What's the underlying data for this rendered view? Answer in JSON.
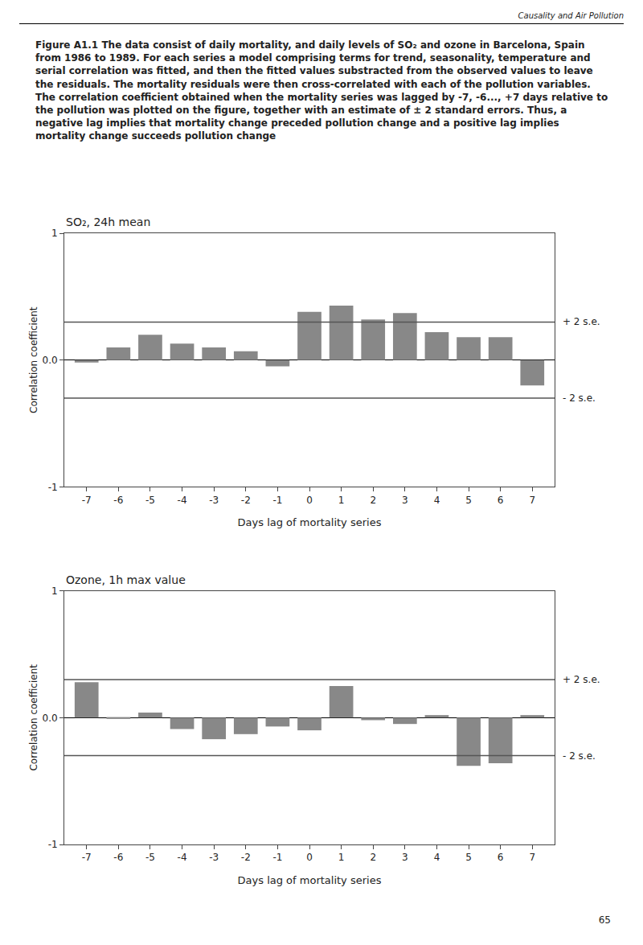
{
  "header": "Causality and Air Pollution",
  "caption": "Figure A1.1 The data consist of daily mortality, and daily levels of SO₂ and ozone in Barcelona, Spain from 1986 to 1989.  For each series a model comprising terms for trend, seasonality, temperature and serial correlation was fitted, and then the fitted values substracted from the observed values to leave the residuals.  The mortality residuals were then cross-correlated with each of the pollution variables.  The correlation coefficient obtained when the mortality series was lagged by -7, -6..., +7 days relative to the pollution was plotted on the figure, together with an estimate of ± 2 standard errors.  Thus, a negative lag implies that mortality change preceded pollution change and a positive lag implies mortality change succeeds pollution change",
  "page_number": "65",
  "chart_data": [
    {
      "type": "bar",
      "title": "SO₂, 24h mean",
      "x": [
        -7,
        -6,
        -5,
        -4,
        -3,
        -2,
        -1,
        0,
        1,
        2,
        3,
        4,
        5,
        6,
        7
      ],
      "values": [
        -0.02,
        0.1,
        0.2,
        0.13,
        0.1,
        0.07,
        -0.05,
        0.38,
        0.43,
        0.32,
        0.37,
        0.22,
        0.18,
        0.18,
        -0.2
      ],
      "color": "#888888",
      "xlabel": "Days lag of mortality series",
      "ylabel": "Correlation coefficient",
      "xlim": [
        -7.7,
        7.7
      ],
      "xticks": [
        -7,
        -6,
        -5,
        -4,
        -3,
        -2,
        -1,
        0,
        1,
        2,
        3,
        4,
        5,
        6,
        7
      ],
      "ylim": [
        -1,
        1
      ],
      "yticks": [
        -1,
        {
          "value": 0,
          "label": "0.0"
        },
        1
      ],
      "grid": false,
      "reference_lines": [
        {
          "value": 0.3,
          "label": "+ 2 s.e.",
          "color": "#555555"
        },
        {
          "value": -0.3,
          "label": "- 2 s.e.",
          "color": "#555555"
        }
      ]
    },
    {
      "type": "bar",
      "title": "Ozone, 1h max value",
      "x": [
        -7,
        -6,
        -5,
        -4,
        -3,
        -2,
        -1,
        0,
        1,
        2,
        3,
        4,
        5,
        6,
        7
      ],
      "values": [
        0.28,
        -0.01,
        0.04,
        -0.09,
        -0.17,
        -0.13,
        -0.07,
        -0.1,
        0.25,
        -0.02,
        -0.05,
        0.02,
        -0.38,
        -0.36,
        0.02
      ],
      "color": "#888888",
      "xlabel": "Days lag of mortality series",
      "ylabel": "Correlation coefficient",
      "xlim": [
        -7.7,
        7.7
      ],
      "xticks": [
        -7,
        -6,
        -5,
        -4,
        -3,
        -2,
        -1,
        0,
        1,
        2,
        3,
        4,
        5,
        6,
        7
      ],
      "ylim": [
        -1,
        1
      ],
      "yticks": [
        -1,
        {
          "value": 0,
          "label": "0.0"
        },
        1
      ],
      "grid": false,
      "reference_lines": [
        {
          "value": 0.3,
          "label": "+ 2 s.e.",
          "color": "#555555"
        },
        {
          "value": -0.3,
          "label": "- 2 s.e.",
          "color": "#555555"
        }
      ]
    }
  ]
}
